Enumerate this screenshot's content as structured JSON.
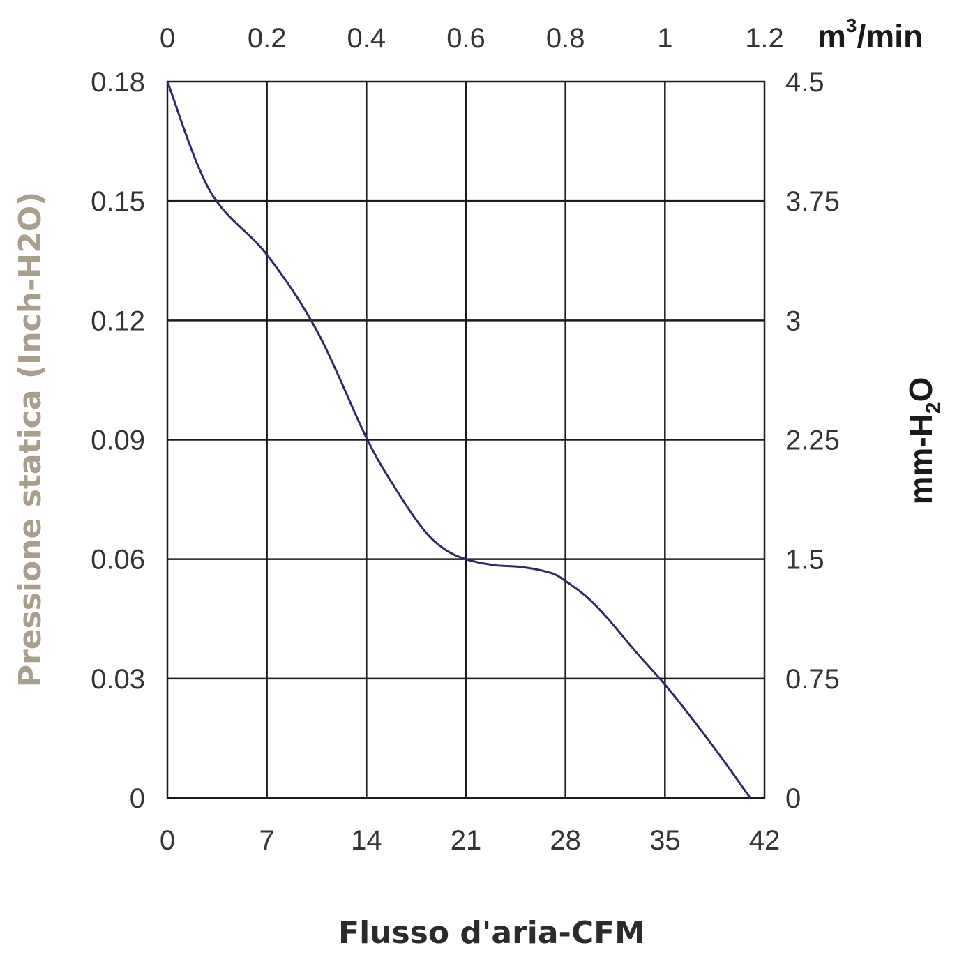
{
  "chart_data": {
    "type": "line",
    "xlabel": "Flusso d'aria-CFM",
    "ylabel": "Pressione statica (Inch-H2O)",
    "x_ticks": [
      "0",
      "7",
      "14",
      "21",
      "28",
      "35",
      "42"
    ],
    "y_ticks": [
      "0",
      "0.03",
      "0.06",
      "0.09",
      "0.12",
      "0.15",
      "0.18"
    ],
    "xlim": [
      0,
      42
    ],
    "ylim": [
      0,
      0.18
    ],
    "secondary_x": {
      "label_base": "m",
      "label_sup": "3",
      "label_tail": "/min",
      "ticks": [
        "0",
        "0.2",
        "0.4",
        "0.6",
        "0.8",
        "1",
        "1.2"
      ],
      "range": [
        0,
        1.2
      ]
    },
    "secondary_y": {
      "label_main": "mm-H",
      "label_sub": "2",
      "label_tail": "O",
      "ticks": [
        "0",
        "0.75",
        "1.5",
        "2.25",
        "3",
        "3.75",
        "4.5"
      ],
      "range": [
        0,
        4.5
      ]
    },
    "grid": true,
    "ylabel_color": "#a89f8c",
    "line_color": "#2a2a66",
    "series": [
      {
        "x": [
          0,
          3,
          7,
          10.5,
          14,
          16,
          18,
          19.5,
          21,
          23,
          25,
          27,
          28,
          29.5,
          31,
          33,
          35,
          37,
          39,
          41
        ],
        "y": [
          0.18,
          0.1525,
          0.1365,
          0.1175,
          0.0905,
          0.078,
          0.0675,
          0.0625,
          0.06,
          0.0585,
          0.058,
          0.0565,
          0.0545,
          0.0505,
          0.045,
          0.0365,
          0.0285,
          0.0195,
          0.01,
          0
        ]
      }
    ]
  }
}
